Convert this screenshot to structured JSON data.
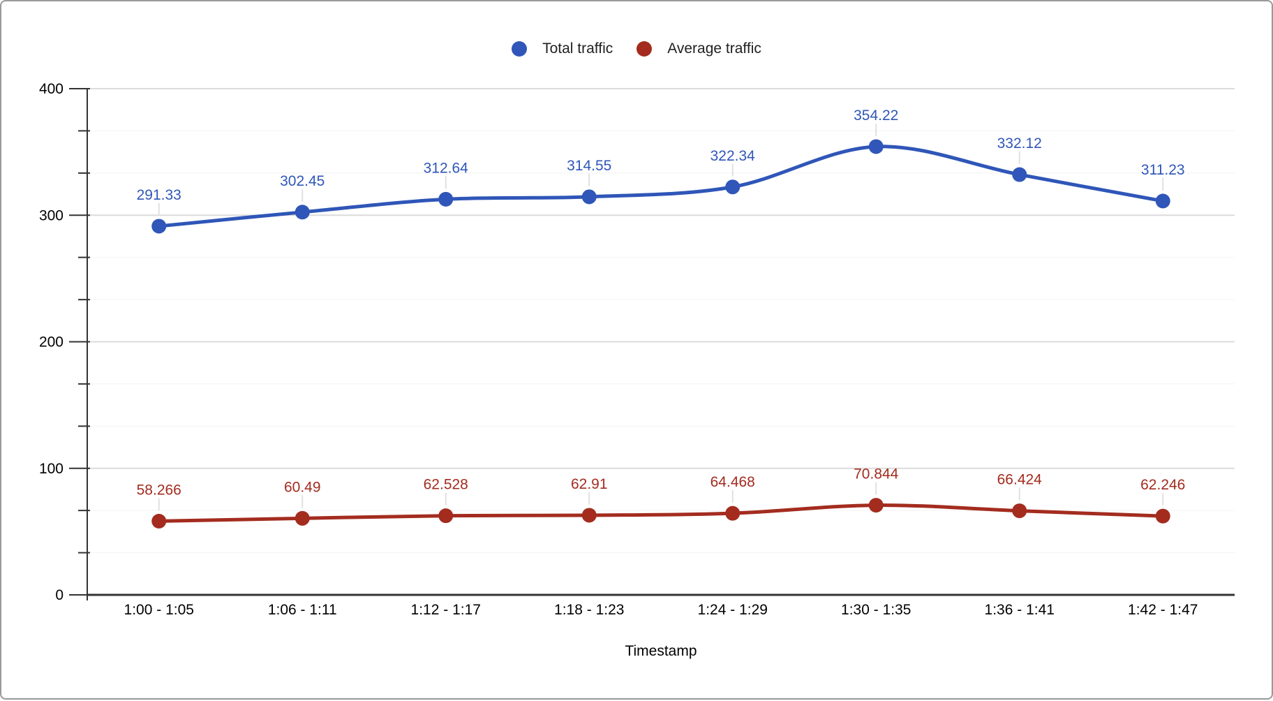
{
  "window": {
    "background": "#ffffff",
    "border_color": "#999999"
  },
  "chart_data": {
    "type": "line",
    "smooth": true,
    "point_labels": true,
    "grid": true,
    "legend_position": "top",
    "categories": [
      "1:00 - 1:05",
      "1:06 - 1:11",
      "1:12 - 1:17",
      "1:18 - 1:23",
      "1:24 - 1:29",
      "1:30 - 1:35",
      "1:36 - 1:41",
      "1:42 - 1:47"
    ],
    "series": [
      {
        "name": "Total traffic",
        "color": "#2f56b8",
        "values": [
          291.33,
          302.45,
          312.64,
          314.55,
          322.34,
          354.22,
          332.12,
          311.23
        ],
        "labels": [
          "291.33",
          "302.45",
          "312.64",
          "314.55",
          "322.34",
          "354.22",
          "332.12",
          "311.23"
        ]
      },
      {
        "name": "Average traffic",
        "color": "#a32c1f",
        "values": [
          58.266,
          60.49,
          62.528,
          62.91,
          64.468,
          70.844,
          66.424,
          62.246
        ],
        "labels": [
          "58.266",
          "60.49",
          "62.528",
          "62.91",
          "64.468",
          "70.844",
          "66.424",
          "62.246"
        ]
      }
    ],
    "xlabel": "Timestamp",
    "ylabel": "",
    "y_axis": {
      "min": 0,
      "max": 400,
      "major_step": 100,
      "minors_per_interval": 2,
      "tick_labels": [
        "0",
        "100",
        "200",
        "300",
        "400"
      ]
    }
  },
  "style_colors": {
    "axis_line": "#333333",
    "major_gridline": "#dcdcdc",
    "minor_gridline": "#f2f2f2",
    "leader_line": "#e0e0e0",
    "axis_text": "#000000",
    "legend_text": "#212121"
  }
}
